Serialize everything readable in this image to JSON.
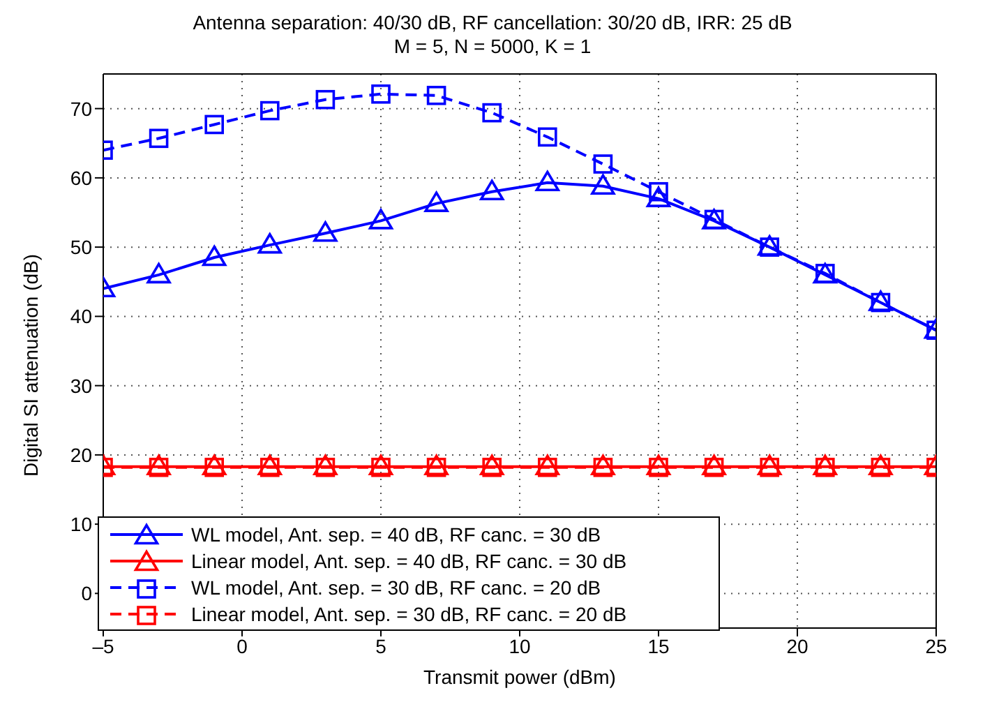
{
  "chart_data": {
    "type": "line",
    "title": "Antenna separation: 40/30 dB, RF cancellation: 30/20 dB, IRR: 25 dB",
    "subtitle": "M = 5, N = 5000, K = 1",
    "xlabel": "Transmit power (dBm)",
    "ylabel": "Digital SI attenuation (dB)",
    "x": [
      -5,
      -3,
      -1,
      1,
      3,
      5,
      7,
      9,
      11,
      13,
      15,
      17,
      19,
      21,
      23,
      25
    ],
    "series": [
      {
        "name": "WL model, Ant. sep. = 40 dB, RF canc. = 30 dB",
        "color": "#0000ff",
        "marker": "triangle",
        "line_style": "solid",
        "values": [
          44,
          46,
          48.5,
          50.3,
          52,
          53.8,
          56.3,
          58,
          59.3,
          58.8,
          57,
          53.8,
          50,
          46,
          42,
          38
        ]
      },
      {
        "name": "Linear model, Ant. sep. = 40 dB, RF canc. = 30 dB",
        "color": "#ff0000",
        "marker": "triangle",
        "line_style": "solid",
        "values": [
          18.3,
          18.3,
          18.3,
          18.3,
          18.3,
          18.3,
          18.3,
          18.3,
          18.3,
          18.3,
          18.3,
          18.3,
          18.3,
          18.3,
          18.3,
          18.3
        ]
      },
      {
        "name": "WL model, Ant. sep. = 30 dB, RF canc. = 20 dB",
        "color": "#0000ff",
        "marker": "square",
        "line_style": "dashed",
        "values": [
          64,
          65.7,
          67.7,
          69.7,
          71.3,
          72.1,
          71.9,
          69.4,
          65.9,
          62,
          58,
          54,
          50,
          46.2,
          42,
          38
        ]
      },
      {
        "name": "Linear model, Ant. sep. = 30 dB, RF canc. = 20 dB",
        "color": "#ff0000",
        "marker": "square",
        "line_style": "dashed",
        "values": [
          18.2,
          18.2,
          18.2,
          18.2,
          18.2,
          18.2,
          18.2,
          18.2,
          18.2,
          18.2,
          18.2,
          18.2,
          18.2,
          18.2,
          18.2,
          18.2
        ]
      }
    ],
    "xlim": [
      -5,
      25
    ],
    "xticks": [
      {
        "value": -5,
        "label": "–5"
      },
      0,
      5,
      10,
      15,
      20,
      25
    ],
    "ylim": [
      -5,
      75
    ],
    "yticks": [
      0,
      10,
      20,
      30,
      40,
      50,
      60,
      70
    ],
    "grid": true,
    "legend": "bottom left"
  }
}
